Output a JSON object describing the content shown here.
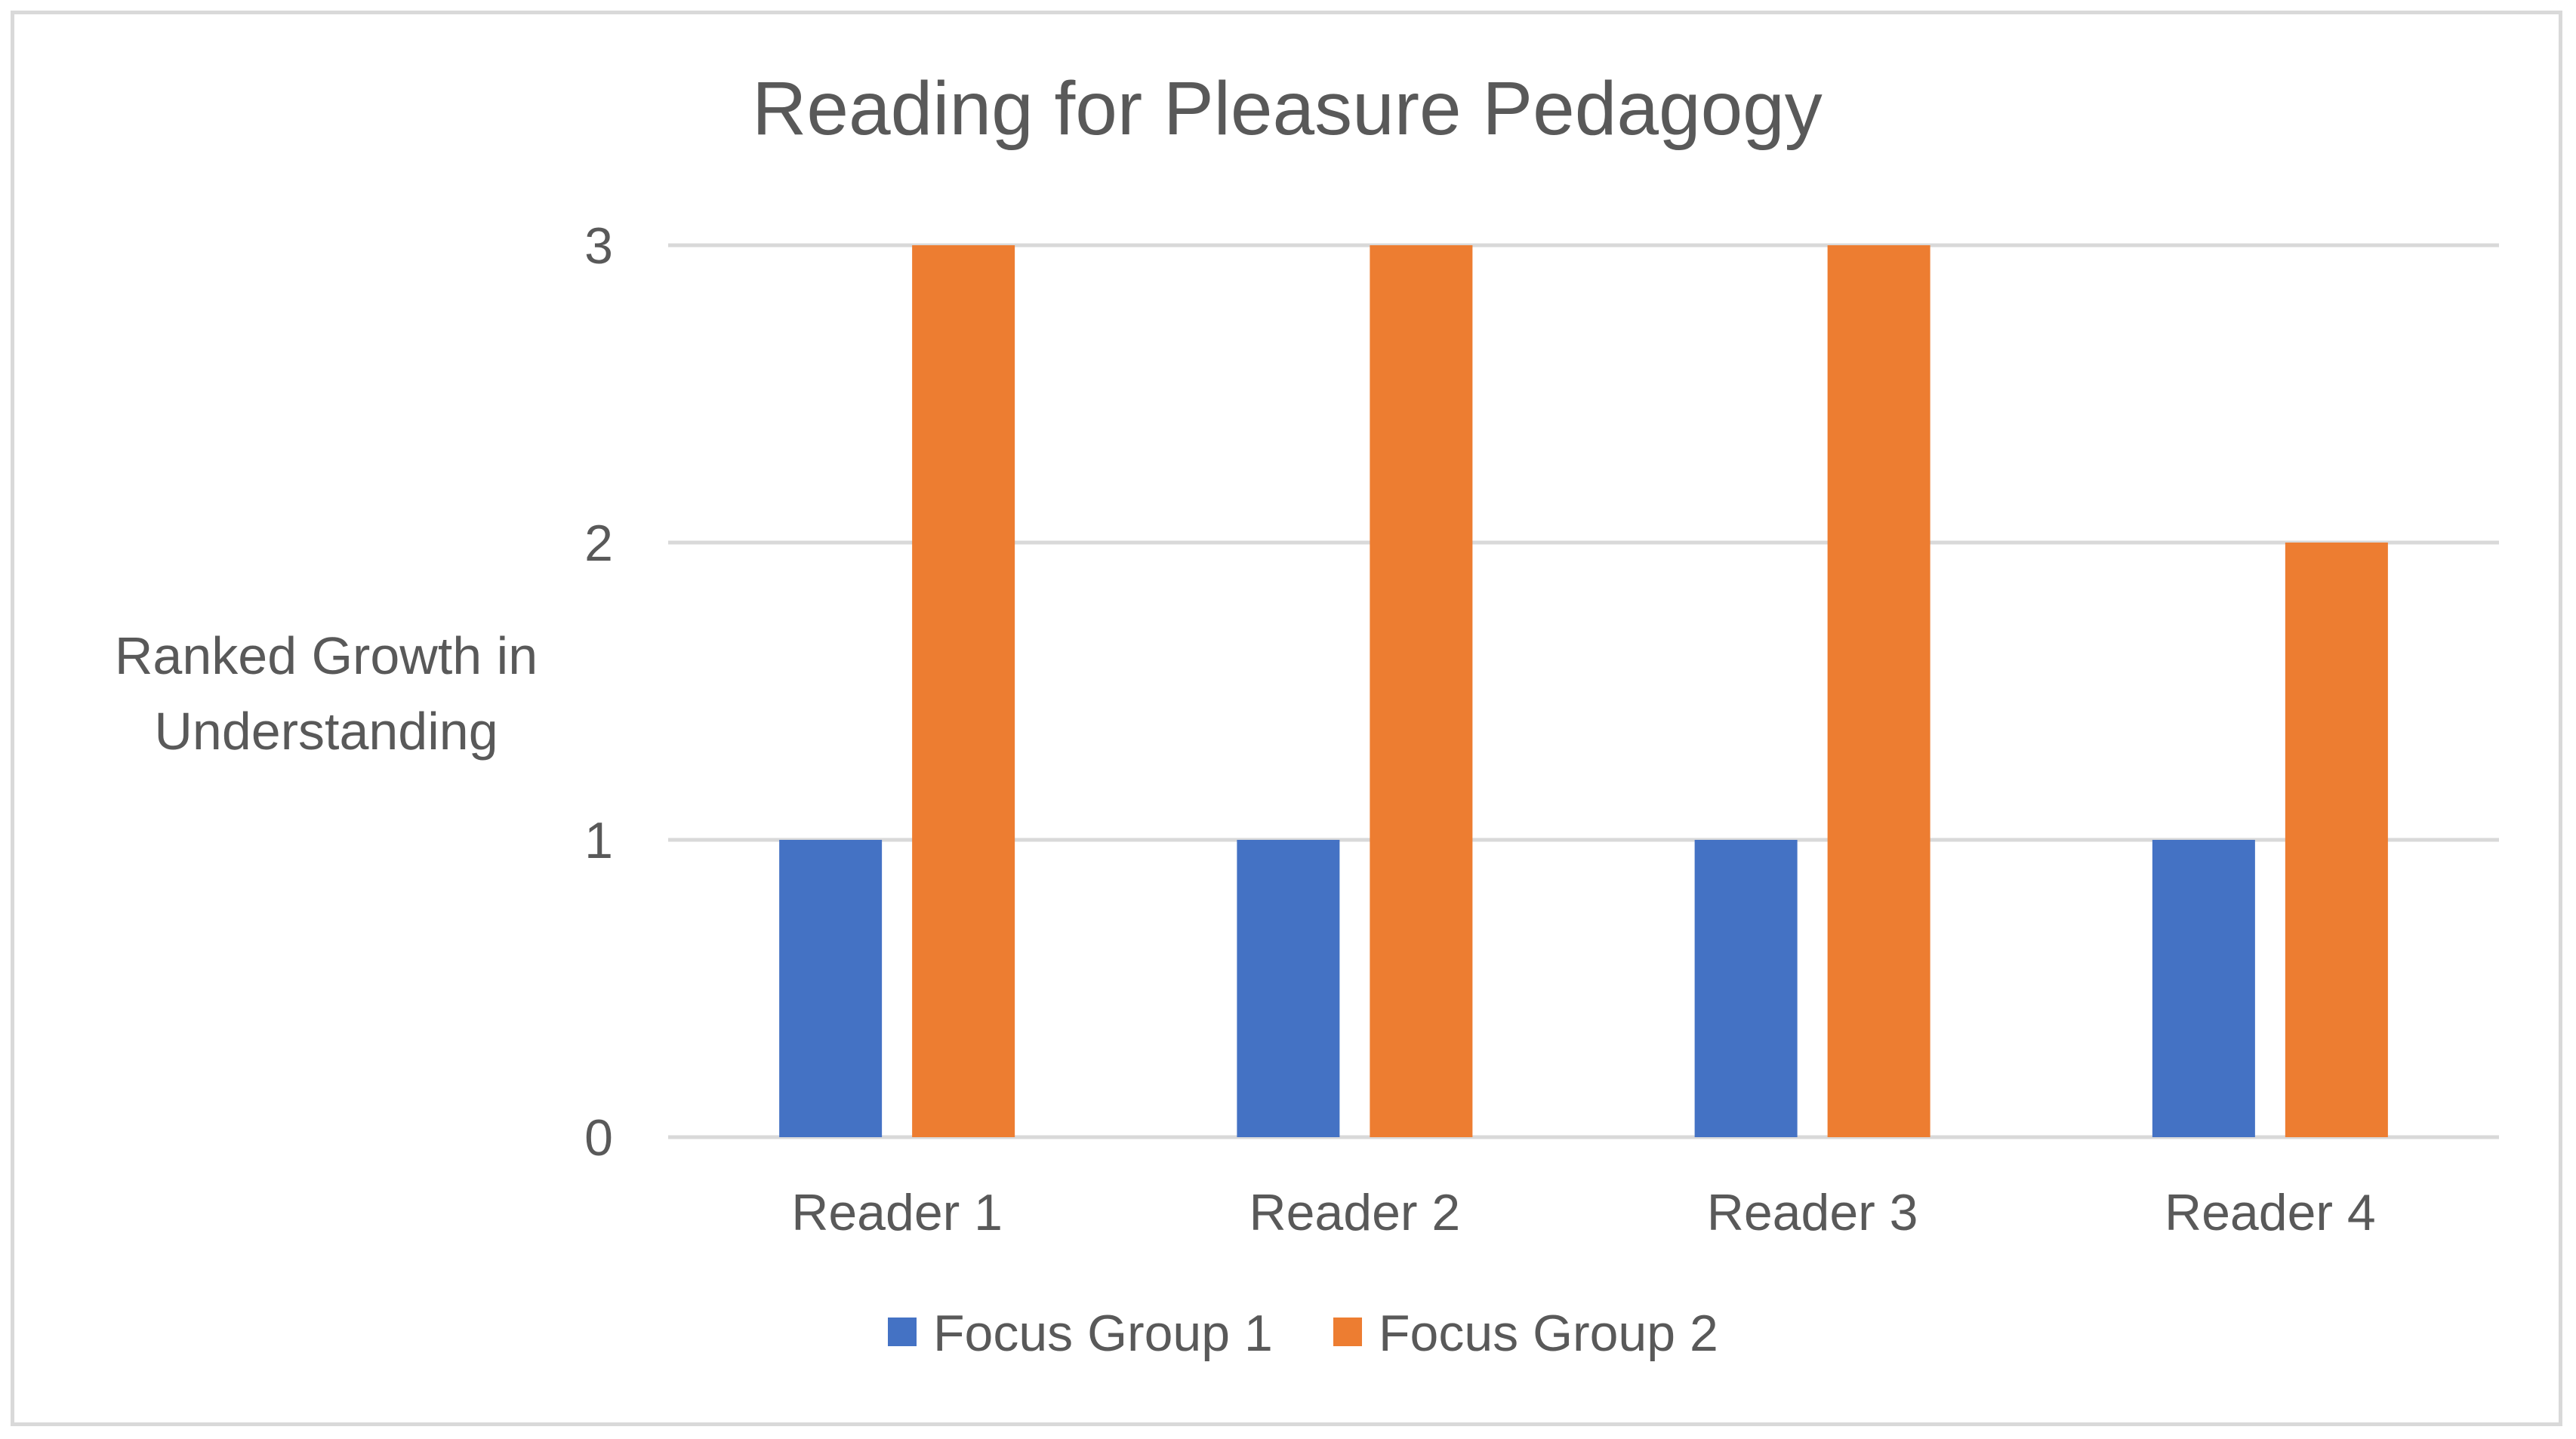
{
  "chart_data": {
    "type": "bar",
    "title": "Reading for Pleasure Pedagogy",
    "xlabel": "",
    "ylabel": "Ranked Growth in Understanding",
    "ylabel_lines": [
      "Ranked Growth in",
      "Understanding"
    ],
    "categories": [
      "Reader 1",
      "Reader 2",
      "Reader 3",
      "Reader 4"
    ],
    "series": [
      {
        "name": "Focus Group 1",
        "values": [
          1,
          1,
          1,
          1
        ],
        "color": "#4472c4"
      },
      {
        "name": "Focus Group 2",
        "values": [
          3,
          3,
          3,
          2
        ],
        "color": "#ed7d31"
      }
    ],
    "ylim": [
      0,
      3
    ],
    "yticks": [
      0,
      1,
      2,
      3
    ],
    "grid": true,
    "legend": "bottom-center"
  }
}
